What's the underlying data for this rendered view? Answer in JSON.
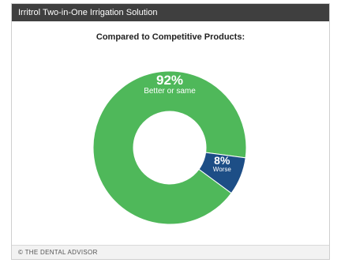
{
  "header": {
    "title": "Irritrol Two-in-One Irrigation Solution"
  },
  "footer": {
    "text": "© THE DENTAL ADVISOR"
  },
  "colors": {
    "header_bg": "#3f3f3f",
    "better": "#4fb85a",
    "worse": "#1d4e86"
  },
  "chart_data": {
    "type": "pie",
    "title": "Compared to Competitive Products:",
    "donut": true,
    "slices": [
      {
        "label": "Better or same",
        "value": 92,
        "value_label": "92%",
        "color": "#4fb85a"
      },
      {
        "label": "Worse",
        "value": 8,
        "value_label": "8%",
        "color": "#1d4e86"
      }
    ]
  }
}
